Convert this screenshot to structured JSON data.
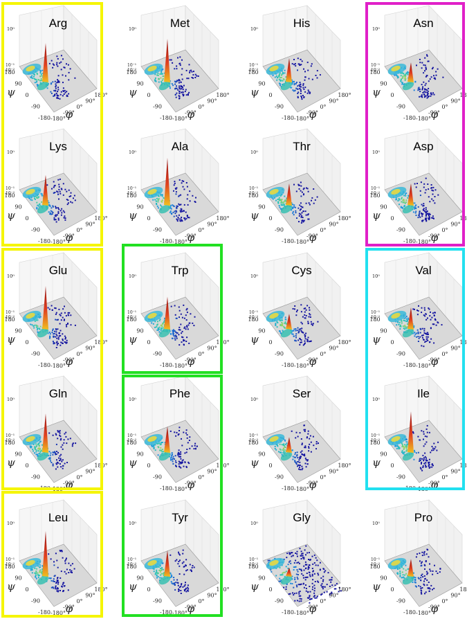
{
  "axis": {
    "z_top": "10⁰",
    "z_low_1": "10⁻¹",
    "z_low_2": "10⁻²",
    "psi_label": "ψ",
    "phi_label": "φ",
    "psi_ticks": [
      "180",
      "90",
      "0",
      "-90",
      "-180"
    ],
    "phi_ticks": [
      "-180°",
      "-90°",
      "0°",
      "90°",
      "180°"
    ]
  },
  "chart_data": {
    "type": "surface",
    "description_units": "phi / psi in degrees, density on log z-axis",
    "xlim": [
      -180,
      180
    ],
    "ylim": [
      -180,
      180
    ],
    "zscale": "log",
    "panels": [
      {
        "name": "Arg",
        "peak": 0.9,
        "group": "yellow"
      },
      {
        "name": "Met",
        "peak": 1.0,
        "group": "none"
      },
      {
        "name": "His",
        "peak": 0.55,
        "group": "none"
      },
      {
        "name": "Asn",
        "peak": 0.45,
        "group": "magenta"
      },
      {
        "name": "Lys",
        "peak": 0.7,
        "group": "yellow"
      },
      {
        "name": "Ala",
        "peak": 1.1,
        "group": "none"
      },
      {
        "name": "Thr",
        "peak": 0.5,
        "group": "none"
      },
      {
        "name": "Asp",
        "peak": 0.5,
        "group": "magenta"
      },
      {
        "name": "Glu",
        "peak": 1.0,
        "group": "yellow"
      },
      {
        "name": "Trp",
        "peak": 0.75,
        "group": "green"
      },
      {
        "name": "Cys",
        "peak": 0.35,
        "group": "none"
      },
      {
        "name": "Val",
        "peak": 0.5,
        "group": "cyan"
      },
      {
        "name": "Gln",
        "peak": 0.9,
        "group": "yellow"
      },
      {
        "name": "Phe",
        "peak": 0.6,
        "group": "green"
      },
      {
        "name": "Ser",
        "peak": 0.35,
        "group": "none"
      },
      {
        "name": "Ile",
        "peak": 0.95,
        "group": "cyan"
      },
      {
        "name": "Leu",
        "peak": 1.05,
        "group": "yellow"
      },
      {
        "name": "Tyr",
        "peak": 0.6,
        "group": "green"
      },
      {
        "name": "Gly",
        "peak": 0.2,
        "group": "none"
      },
      {
        "name": "Pro",
        "peak": 0.4,
        "group": "none"
      }
    ],
    "group_colors": {
      "yellow": "#f5f500",
      "magenta": "#e020c8",
      "green": "#22e022",
      "cyan": "#22e0f0"
    }
  }
}
